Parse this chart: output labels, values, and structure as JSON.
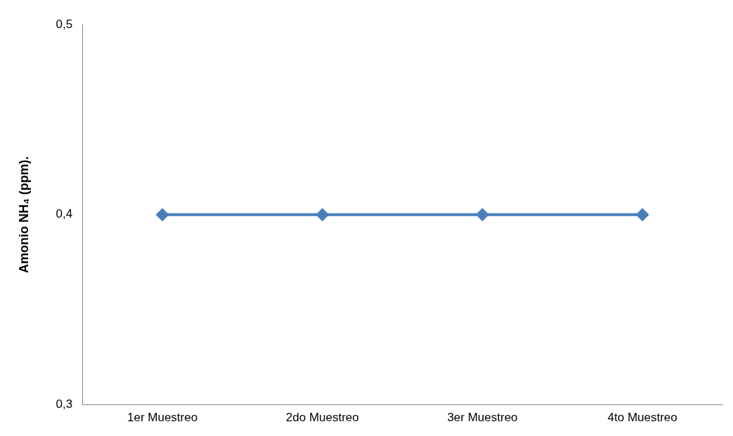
{
  "chart_data": {
    "type": "line",
    "ylabel": "Amonio NH₄ (ppm).",
    "categories": [
      "1er Muestreo",
      "2do Muestreo",
      "3er Muestreo",
      "4to Muestreo"
    ],
    "series": [
      {
        "color": "#4a7ebb",
        "values": [
          0.4,
          0.4,
          0.4,
          0.4
        ]
      }
    ],
    "ylim": [
      0.3,
      0.5
    ],
    "yticks": [
      {
        "value": 0.3,
        "label": "0,3"
      },
      {
        "value": 0.4,
        "label": "0,4"
      },
      {
        "value": 0.5,
        "label": "0,5"
      }
    ],
    "grid": false,
    "legend": false,
    "marker": "diamond",
    "line_style": "solid"
  }
}
